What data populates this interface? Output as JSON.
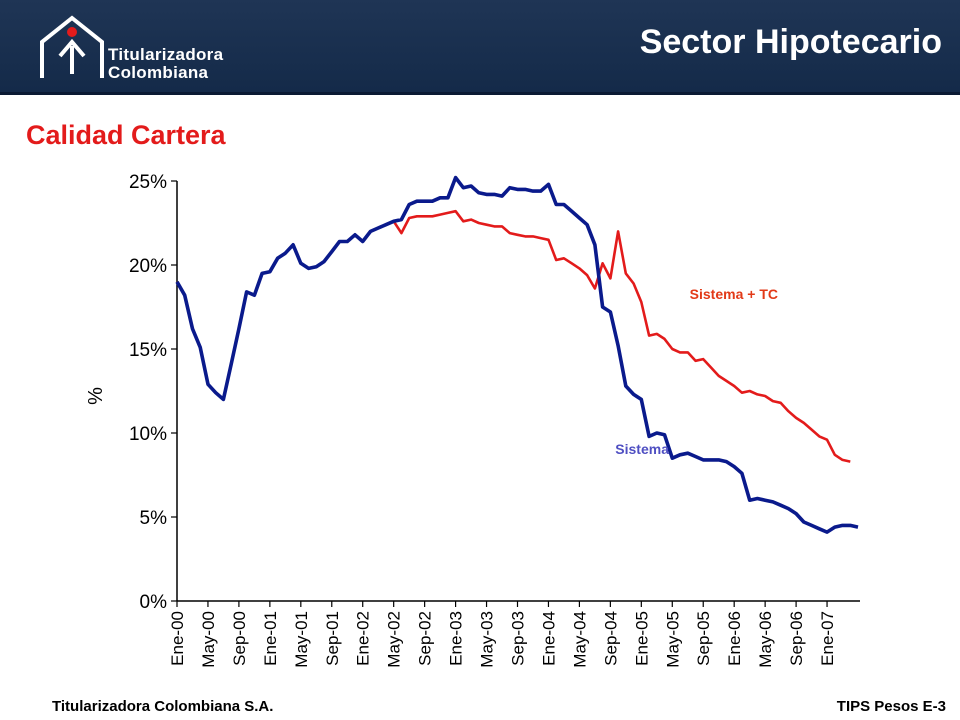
{
  "header": {
    "brand_line1": "Titularizadora",
    "brand_line2": "Colombiana",
    "page_title": "Sector Hipotecario",
    "logo_icon": "house-arrow-logo-icon"
  },
  "section_title": "Calidad Cartera",
  "footer": {
    "company": "Titularizadora Colombiana S.A.",
    "ref": "TIPS Pesos E-3"
  },
  "chart_data": {
    "type": "line",
    "title": "",
    "xlabel": "",
    "ylabel": "%",
    "ylim": [
      0,
      25
    ],
    "yticks": [
      "0%",
      "5%",
      "10%",
      "15%",
      "20%",
      "25%"
    ],
    "x_start": "2000-01",
    "x_tick_every": 4,
    "x_tick_labels": [
      "Ene-00",
      "May-00",
      "Sep-00",
      "Ene-01",
      "May-01",
      "Sep-01",
      "Ene-02",
      "May-02",
      "Sep-02",
      "Ene-03",
      "May-03",
      "Sep-03",
      "Ene-04",
      "May-04",
      "Sep-04",
      "Ene-05",
      "May-05",
      "Sep-05",
      "Ene-06",
      "May-06",
      "Sep-06",
      "Ene-07"
    ],
    "grid": false,
    "legend": "inline labels",
    "series": [
      {
        "name": "Sistema",
        "color": "#0a1a8c",
        "label_color": "#4f4fc2",
        "values": [
          19.0,
          18.2,
          16.2,
          15.1,
          12.9,
          12.4,
          12.0,
          14.1,
          16.2,
          18.4,
          18.2,
          19.5,
          19.6,
          20.4,
          20.7,
          21.2,
          20.1,
          19.8,
          19.9,
          20.2,
          20.8,
          21.4,
          21.4,
          21.8,
          21.4,
          22.0,
          22.2,
          22.4,
          22.6,
          22.7,
          23.6,
          23.8,
          23.8,
          23.8,
          24.0,
          24.0,
          25.2,
          24.6,
          24.7,
          24.3,
          24.2,
          24.2,
          24.1,
          24.6,
          24.5,
          24.5,
          24.4,
          24.4,
          24.8,
          23.6,
          23.6,
          23.2,
          22.8,
          22.4,
          21.2,
          17.5,
          17.2,
          15.2,
          12.8,
          12.3,
          12.0,
          9.8,
          10.0,
          9.9,
          8.5,
          8.7,
          8.8,
          8.6,
          8.4,
          8.4,
          8.4,
          8.3,
          8.0,
          7.6,
          6.0,
          6.1,
          6.0,
          5.9,
          5.7,
          5.5,
          5.2,
          4.7,
          4.5,
          4.3,
          4.1,
          4.4,
          4.5,
          4.5,
          4.4
        ]
      },
      {
        "name": "Sistema + TC",
        "color": "#e31b1b",
        "label_color": "#e23a18",
        "values": [
          19.0,
          18.2,
          16.2,
          15.1,
          12.9,
          12.4,
          12.0,
          14.1,
          16.2,
          18.4,
          18.2,
          19.5,
          19.6,
          20.4,
          20.7,
          21.2,
          20.1,
          19.8,
          19.9,
          20.2,
          20.8,
          21.4,
          21.4,
          21.8,
          21.4,
          22.0,
          22.2,
          22.4,
          22.6,
          21.9,
          22.8,
          22.9,
          22.9,
          22.9,
          23.0,
          23.1,
          23.2,
          22.6,
          22.7,
          22.5,
          22.4,
          22.3,
          22.3,
          21.9,
          21.8,
          21.7,
          21.7,
          21.6,
          21.5,
          20.3,
          20.4,
          20.1,
          19.8,
          19.4,
          18.6,
          20.1,
          19.2,
          22.0,
          19.5,
          18.9,
          17.8,
          15.8,
          15.9,
          15.6,
          15.0,
          14.8,
          14.8,
          14.3,
          14.4,
          13.9,
          13.4,
          13.1,
          12.8,
          12.4,
          12.5,
          12.3,
          12.2,
          11.9,
          11.8,
          11.3,
          10.9,
          10.6,
          10.2,
          9.8,
          9.6,
          8.7,
          8.4,
          8.3
        ]
      }
    ]
  }
}
